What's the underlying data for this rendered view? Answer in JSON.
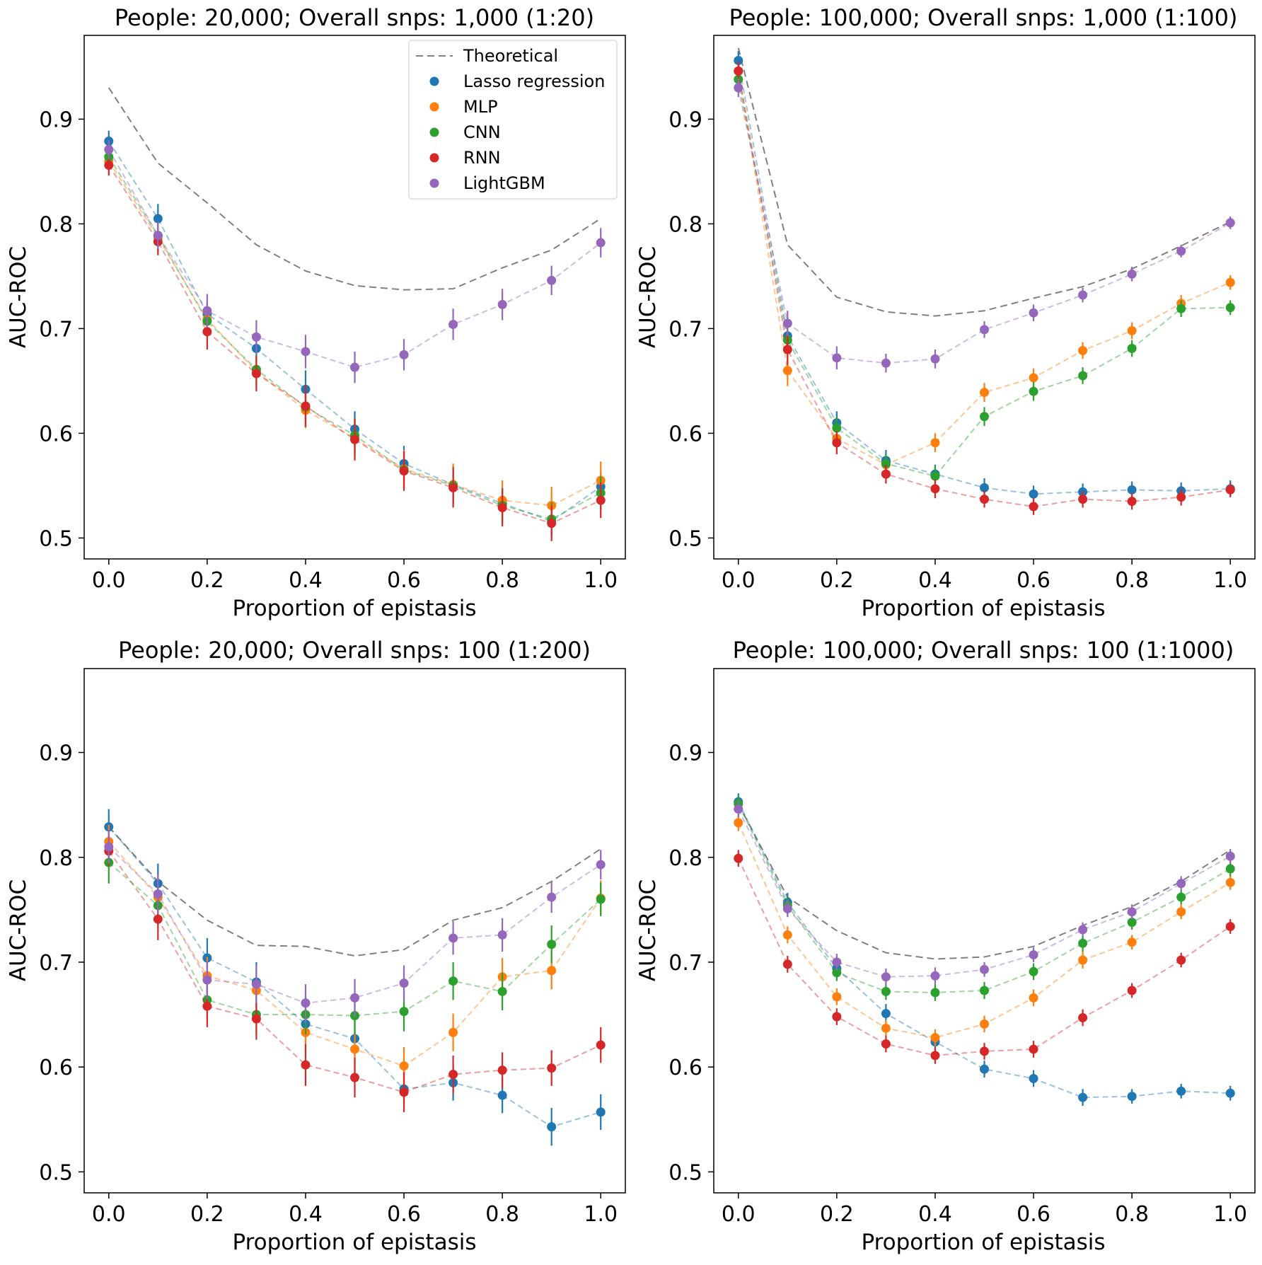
{
  "chart_data": [
    {
      "type": "line",
      "title": "People: 20,000; Overall snps: 1,000 (1:20)",
      "xlabel": "Proportion of epistasis",
      "ylabel": "AUC-ROC",
      "xlim": [
        -0.05,
        1.05
      ],
      "ylim": [
        0.48,
        0.98
      ],
      "xticks": [
        "0.0",
        "0.2",
        "0.4",
        "0.6",
        "0.8",
        "1.0"
      ],
      "yticks": [
        "0.5",
        "0.6",
        "0.7",
        "0.8",
        "0.9"
      ],
      "x": [
        0.0,
        0.1,
        0.2,
        0.3,
        0.4,
        0.5,
        0.6,
        0.7,
        0.8,
        0.9,
        1.0
      ],
      "theoretical": [
        0.93,
        0.858,
        0.82,
        0.78,
        0.755,
        0.741,
        0.737,
        0.738,
        0.758,
        0.775,
        0.805
      ],
      "series": [
        {
          "name": "Lasso regression",
          "values": [
            0.879,
            0.805,
            0.714,
            0.681,
            0.642,
            0.604,
            0.571,
            0.551,
            0.533,
            0.516,
            0.549
          ],
          "err": [
            0.01,
            0.014,
            0.012,
            0.014,
            0.018,
            0.017,
            0.017,
            0.016,
            0.015,
            0.014,
            0.015
          ]
        },
        {
          "name": "MLP",
          "values": [
            0.86,
            0.787,
            0.709,
            0.659,
            0.622,
            0.595,
            0.566,
            0.551,
            0.536,
            0.531,
            0.555
          ],
          "err": [
            0.01,
            0.014,
            0.013,
            0.015,
            0.017,
            0.017,
            0.018,
            0.02,
            0.019,
            0.018,
            0.018
          ]
        },
        {
          "name": "CNN",
          "values": [
            0.864,
            0.789,
            0.707,
            0.661,
            0.625,
            0.598,
            0.565,
            0.55,
            0.531,
            0.518,
            0.543
          ],
          "err": [
            0.01,
            0.013,
            0.013,
            0.014,
            0.017,
            0.017,
            0.017,
            0.018,
            0.017,
            0.016,
            0.016
          ]
        },
        {
          "name": "RNN",
          "values": [
            0.856,
            0.783,
            0.697,
            0.657,
            0.626,
            0.594,
            0.564,
            0.548,
            0.529,
            0.514,
            0.536
          ],
          "err": [
            0.01,
            0.013,
            0.017,
            0.017,
            0.02,
            0.02,
            0.019,
            0.019,
            0.018,
            0.017,
            0.017
          ]
        },
        {
          "name": "LightGBM",
          "values": [
            0.871,
            0.789,
            0.717,
            0.692,
            0.678,
            0.663,
            0.675,
            0.704,
            0.723,
            0.746,
            0.782
          ],
          "err": [
            0.009,
            0.013,
            0.016,
            0.016,
            0.016,
            0.015,
            0.015,
            0.015,
            0.015,
            0.014,
            0.014
          ]
        }
      ]
    },
    {
      "type": "line",
      "title": "People: 100,000; Overall snps: 1,000 (1:100)",
      "xlabel": "Proportion of epistasis",
      "ylabel": "AUC-ROC",
      "xlim": [
        -0.05,
        1.05
      ],
      "ylim": [
        0.48,
        0.98
      ],
      "xticks": [
        "0.0",
        "0.2",
        "0.4",
        "0.6",
        "0.8",
        "1.0"
      ],
      "yticks": [
        "0.5",
        "0.6",
        "0.7",
        "0.8",
        "0.9"
      ],
      "x": [
        0.0,
        0.1,
        0.2,
        0.3,
        0.4,
        0.5,
        0.6,
        0.7,
        0.8,
        0.9,
        1.0
      ],
      "theoretical": [
        0.968,
        0.78,
        0.73,
        0.716,
        0.712,
        0.717,
        0.729,
        0.74,
        0.757,
        0.779,
        0.802
      ],
      "series": [
        {
          "name": "Lasso regression",
          "values": [
            0.956,
            0.693,
            0.61,
            0.574,
            0.561,
            0.548,
            0.542,
            0.544,
            0.546,
            0.545,
            0.547
          ],
          "err": [
            0.009,
            0.012,
            0.011,
            0.01,
            0.009,
            0.009,
            0.008,
            0.008,
            0.008,
            0.008,
            0.008
          ]
        },
        {
          "name": "MLP",
          "values": [
            0.946,
            0.66,
            0.595,
            0.57,
            0.591,
            0.639,
            0.653,
            0.679,
            0.698,
            0.724,
            0.744
          ],
          "err": [
            0.009,
            0.015,
            0.011,
            0.009,
            0.009,
            0.009,
            0.009,
            0.008,
            0.008,
            0.008,
            0.007
          ]
        },
        {
          "name": "CNN",
          "values": [
            0.938,
            0.689,
            0.605,
            0.571,
            0.559,
            0.616,
            0.64,
            0.655,
            0.681,
            0.719,
            0.72
          ],
          "err": [
            0.009,
            0.012,
            0.011,
            0.009,
            0.01,
            0.009,
            0.009,
            0.008,
            0.008,
            0.008,
            0.007
          ]
        },
        {
          "name": "RNN",
          "values": [
            0.946,
            0.68,
            0.591,
            0.561,
            0.547,
            0.537,
            0.53,
            0.537,
            0.535,
            0.539,
            0.546
          ],
          "err": [
            0.009,
            0.015,
            0.011,
            0.009,
            0.009,
            0.008,
            0.008,
            0.008,
            0.008,
            0.008,
            0.007
          ]
        },
        {
          "name": "LightGBM",
          "values": [
            0.93,
            0.705,
            0.672,
            0.667,
            0.671,
            0.699,
            0.715,
            0.732,
            0.752,
            0.774,
            0.801
          ],
          "err": [
            0.009,
            0.012,
            0.011,
            0.009,
            0.009,
            0.008,
            0.008,
            0.007,
            0.007,
            0.006,
            0.006
          ]
        }
      ]
    },
    {
      "type": "line",
      "title": "People: 20,000; Overall snps: 100 (1:200)",
      "xlabel": "Proportion of epistasis",
      "ylabel": "AUC-ROC",
      "xlim": [
        -0.05,
        1.05
      ],
      "ylim": [
        0.48,
        0.98
      ],
      "xticks": [
        "0.0",
        "0.2",
        "0.4",
        "0.6",
        "0.8",
        "1.0"
      ],
      "yticks": [
        "0.5",
        "0.6",
        "0.7",
        "0.8",
        "0.9"
      ],
      "x": [
        0.0,
        0.1,
        0.2,
        0.3,
        0.4,
        0.5,
        0.6,
        0.7,
        0.8,
        0.9,
        1.0
      ],
      "theoretical": [
        0.829,
        0.777,
        0.74,
        0.716,
        0.715,
        0.706,
        0.712,
        0.74,
        0.752,
        0.777,
        0.808
      ],
      "series": [
        {
          "name": "Lasso regression",
          "values": [
            0.829,
            0.775,
            0.704,
            0.681,
            0.641,
            0.627,
            0.579,
            0.585,
            0.573,
            0.543,
            0.557
          ],
          "err": [
            0.017,
            0.019,
            0.019,
            0.019,
            0.018,
            0.018,
            0.017,
            0.017,
            0.017,
            0.018,
            0.017
          ]
        },
        {
          "name": "MLP",
          "values": [
            0.815,
            0.762,
            0.687,
            0.673,
            0.633,
            0.617,
            0.601,
            0.633,
            0.686,
            0.692,
            0.761
          ],
          "err": [
            0.016,
            0.018,
            0.018,
            0.018,
            0.018,
            0.018,
            0.018,
            0.018,
            0.018,
            0.018,
            0.017
          ]
        },
        {
          "name": "CNN",
          "values": [
            0.795,
            0.754,
            0.664,
            0.65,
            0.65,
            0.649,
            0.653,
            0.682,
            0.672,
            0.717,
            0.76
          ],
          "err": [
            0.02,
            0.019,
            0.018,
            0.018,
            0.019,
            0.018,
            0.019,
            0.018,
            0.018,
            0.018,
            0.016
          ]
        },
        {
          "name": "RNN",
          "values": [
            0.806,
            0.741,
            0.658,
            0.646,
            0.602,
            0.59,
            0.576,
            0.593,
            0.597,
            0.599,
            0.621
          ],
          "err": [
            0.014,
            0.02,
            0.02,
            0.02,
            0.02,
            0.019,
            0.019,
            0.018,
            0.017,
            0.017,
            0.017
          ]
        },
        {
          "name": "LightGBM",
          "values": [
            0.81,
            0.765,
            0.683,
            0.679,
            0.661,
            0.666,
            0.68,
            0.723,
            0.726,
            0.762,
            0.793
          ],
          "err": [
            0.016,
            0.019,
            0.018,
            0.018,
            0.018,
            0.018,
            0.017,
            0.016,
            0.016,
            0.015,
            0.014
          ]
        }
      ]
    },
    {
      "type": "line",
      "title": "People: 100,000; Overall snps: 100 (1:1000)",
      "xlabel": "Proportion of epistasis",
      "ylabel": "AUC-ROC",
      "xlim": [
        -0.05,
        1.05
      ],
      "ylim": [
        0.48,
        0.98
      ],
      "xticks": [
        "0.0",
        "0.2",
        "0.4",
        "0.6",
        "0.8",
        "1.0"
      ],
      "yticks": [
        "0.5",
        "0.6",
        "0.7",
        "0.8",
        "0.9"
      ],
      "x": [
        0.0,
        0.1,
        0.2,
        0.3,
        0.4,
        0.5,
        0.6,
        0.7,
        0.8,
        0.9,
        1.0
      ],
      "theoretical": [
        0.851,
        0.762,
        0.73,
        0.709,
        0.703,
        0.705,
        0.715,
        0.735,
        0.753,
        0.777,
        0.807
      ],
      "series": [
        {
          "name": "Lasso regression",
          "values": [
            0.853,
            0.757,
            0.694,
            0.651,
            0.624,
            0.598,
            0.589,
            0.571,
            0.572,
            0.577,
            0.575
          ],
          "err": [
            0.008,
            0.009,
            0.009,
            0.009,
            0.008,
            0.008,
            0.008,
            0.008,
            0.007,
            0.007,
            0.007
          ]
        },
        {
          "name": "MLP",
          "values": [
            0.833,
            0.726,
            0.667,
            0.637,
            0.628,
            0.641,
            0.666,
            0.702,
            0.719,
            0.748,
            0.776
          ],
          "err": [
            0.008,
            0.008,
            0.008,
            0.008,
            0.008,
            0.008,
            0.008,
            0.008,
            0.007,
            0.007,
            0.007
          ]
        },
        {
          "name": "CNN",
          "values": [
            0.851,
            0.754,
            0.69,
            0.672,
            0.671,
            0.673,
            0.691,
            0.718,
            0.738,
            0.762,
            0.789
          ],
          "err": [
            0.008,
            0.008,
            0.008,
            0.008,
            0.008,
            0.008,
            0.008,
            0.008,
            0.007,
            0.007,
            0.007
          ]
        },
        {
          "name": "RNN",
          "values": [
            0.799,
            0.698,
            0.648,
            0.622,
            0.611,
            0.615,
            0.617,
            0.647,
            0.673,
            0.702,
            0.734
          ],
          "err": [
            0.008,
            0.008,
            0.008,
            0.008,
            0.008,
            0.008,
            0.008,
            0.008,
            0.007,
            0.007,
            0.007
          ]
        },
        {
          "name": "LightGBM",
          "values": [
            0.846,
            0.751,
            0.7,
            0.686,
            0.687,
            0.693,
            0.707,
            0.731,
            0.748,
            0.775,
            0.801
          ],
          "err": [
            0.008,
            0.008,
            0.008,
            0.008,
            0.008,
            0.007,
            0.007,
            0.007,
            0.007,
            0.007,
            0.007
          ]
        }
      ]
    }
  ],
  "legend": {
    "position": "top-right of first panel",
    "entries": [
      "Theoretical",
      "Lasso regression",
      "MLP",
      "CNN",
      "RNN",
      "LightGBM"
    ]
  },
  "colors": {
    "Theoretical": "#808080",
    "Lasso regression": "#1f77b4",
    "MLP": "#ff7f0e",
    "CNN": "#2ca02c",
    "RNN": "#d62728",
    "LightGBM": "#9467bd"
  }
}
